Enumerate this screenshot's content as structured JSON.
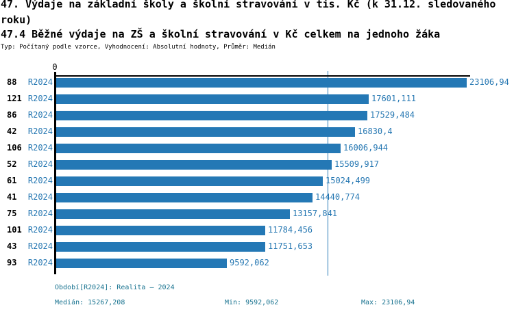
{
  "header": {
    "title": "47. Výdaje na základní školy a školní stravování v tis. Kč (k 31.12. sledovaného roku)",
    "subtitle": "47.4 Běžné výdaje na ZŠ a školní stravování v Kč celkem na jednoho žáka",
    "meta": "Typ: Počítaný podle vzorce, Vyhodnocení: Absolutní hodnoty, Průměr: Medián"
  },
  "chart": {
    "zero_label": "0"
  },
  "chart_data": {
    "type": "bar",
    "orientation": "horizontal",
    "title": "47.4 Běžné výdaje na ZŠ a školní stravování v Kč celkem na jednoho žáka",
    "categories": [
      "88",
      "121",
      "86",
      "42",
      "106",
      "52",
      "61",
      "41",
      "75",
      "101",
      "43",
      "93"
    ],
    "series_label": "R2024",
    "values": [
      23106.94,
      17601.111,
      17529.484,
      16830.4,
      16006.944,
      15509.917,
      15024.499,
      14440.774,
      13157.841,
      11784.456,
      11751.653,
      9592.062
    ],
    "value_labels": [
      "23106,94",
      "17601,111",
      "17529,484",
      "16830,4",
      "16006,944",
      "15509,917",
      "15024,499",
      "14440,774",
      "13157,841",
      "11784,456",
      "11751,653",
      "9592,062"
    ],
    "xlim": [
      0,
      23106.94
    ],
    "median": 15267.208,
    "grid": false,
    "legend_position": "none"
  },
  "footer": {
    "period": "Období[R2024]: Realita – 2024",
    "median": "Medián: 15267,208",
    "min": "Min: 9592,062",
    "max": "Max: 23106,94"
  },
  "colors": {
    "bar": "#2478B5",
    "label_blue": "#2577B2",
    "median_line": "#2478B5",
    "footer_teal": "#17728F",
    "axis": "#000000"
  }
}
